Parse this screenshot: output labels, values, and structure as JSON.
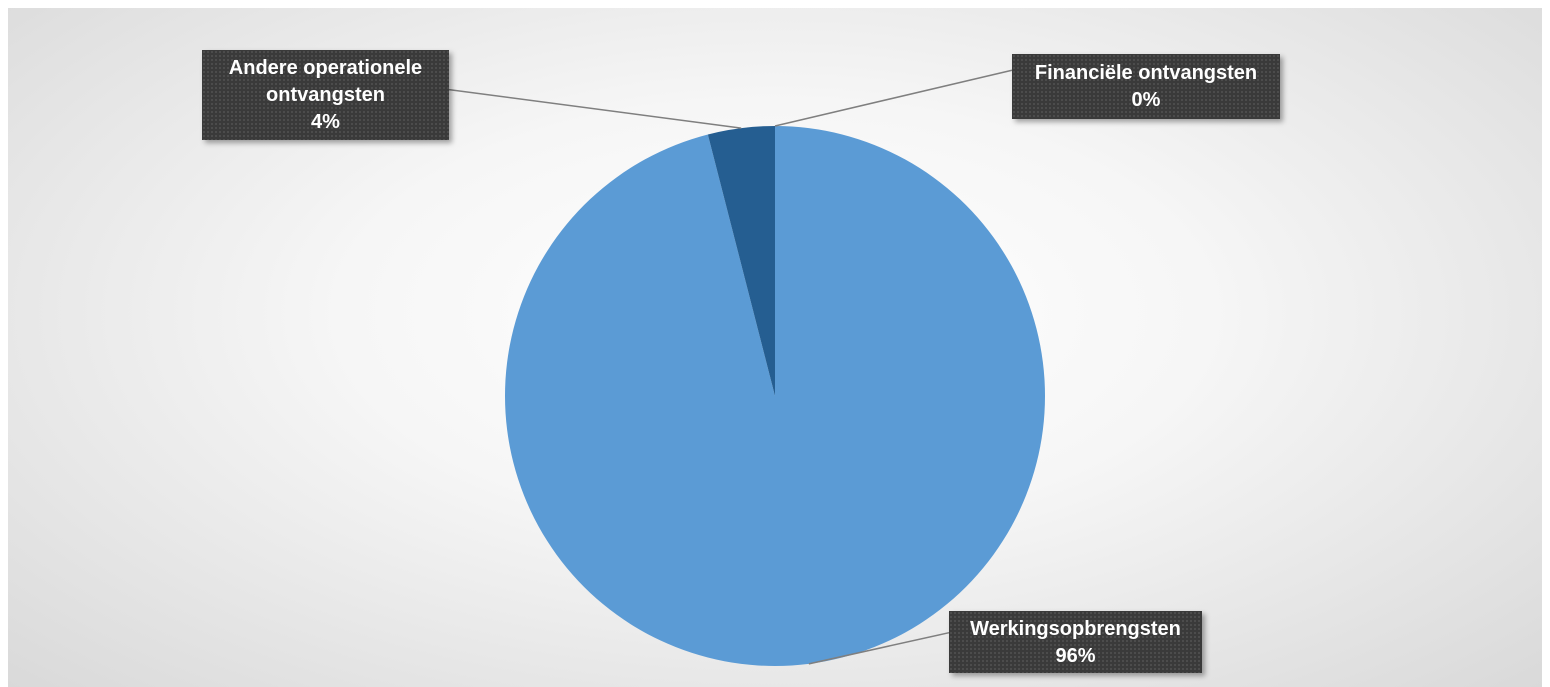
{
  "chart_data": {
    "type": "pie",
    "slices": [
      {
        "name": "Werkingsopbrengsten",
        "percent_label": "96%",
        "value": 96,
        "color": "#5b9bd5"
      },
      {
        "name": "Andere operationele ontvangsten",
        "name_lines": [
          "Andere operationele",
          "ontvangsten"
        ],
        "percent_label": "4%",
        "value": 4,
        "color": "#255e91"
      },
      {
        "name": "Financiële ontvangsten",
        "percent_label": "0%",
        "value": 0,
        "color": "#9dc3e6"
      }
    ],
    "legend": "none",
    "data_label_style": "dark callouts with leader lines"
  }
}
